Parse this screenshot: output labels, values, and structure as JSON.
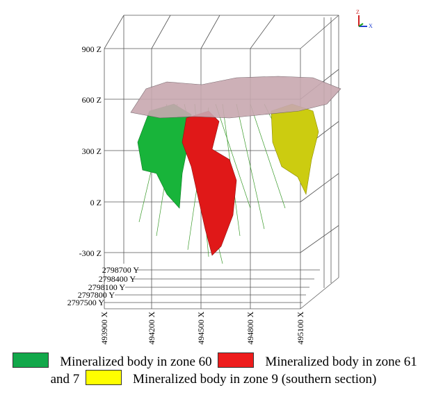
{
  "z_axis": {
    "labels": [
      "900 Z",
      "600 Z",
      "300 Z",
      "0 Z",
      "-300 Z"
    ]
  },
  "y_axis": {
    "labels": [
      "2798700 Y",
      "2798400 Y",
      "2798100 Y",
      "2797800 Y",
      "2797500 Y"
    ]
  },
  "x_axis": {
    "labels": [
      "493900 X",
      "494200 X",
      "494500 X",
      "494800 X",
      "495100 X"
    ]
  },
  "orientation": {
    "z": "Z",
    "x": "X"
  },
  "legend": {
    "items": [
      {
        "label": "Mineralized body in zone 60",
        "color": "#12a84a"
      },
      {
        "label": "Mineralized body in zone 61 and 7",
        "color": "#ee1c1c"
      },
      {
        "label": "Mineralized body in zone 9 (southern section)",
        "color": "#ffff00"
      }
    ]
  }
}
